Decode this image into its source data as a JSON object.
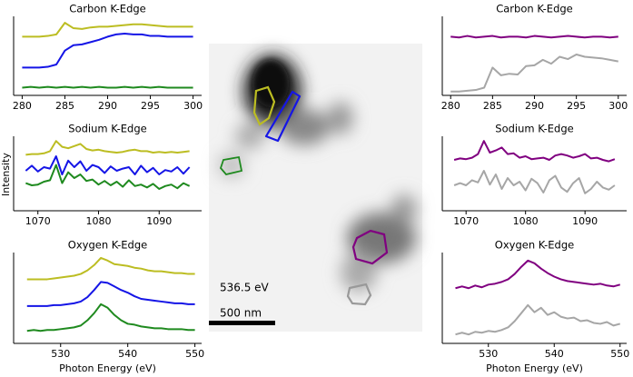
{
  "chart_data": [
    {
      "type": "line",
      "title": "Carbon K-Edge",
      "x": [
        280,
        281,
        282,
        283,
        284,
        285,
        286,
        287,
        288,
        289,
        290,
        291,
        292,
        293,
        294,
        295,
        296,
        297,
        298,
        299,
        300
      ],
      "xlim": [
        279,
        301
      ],
      "xticks": [
        280,
        285,
        290,
        295,
        300
      ],
      "ylim": [
        0,
        10
      ],
      "series": [
        {
          "color": "#bcbd22",
          "values": [
            7.6,
            7.6,
            7.6,
            7.7,
            7.9,
            9.4,
            8.7,
            8.6,
            8.8,
            8.9,
            8.9,
            9.0,
            9.1,
            9.2,
            9.2,
            9.1,
            9.0,
            8.9,
            8.9,
            8.9,
            8.9
          ]
        },
        {
          "color": "#1515e6",
          "values": [
            3.6,
            3.6,
            3.6,
            3.7,
            4.0,
            5.8,
            6.5,
            6.6,
            6.9,
            7.2,
            7.6,
            7.9,
            8.0,
            7.9,
            7.9,
            7.7,
            7.7,
            7.6,
            7.6,
            7.6,
            7.6
          ]
        },
        {
          "color": "#1f8a1f",
          "values": [
            1.0,
            1.1,
            1.0,
            1.1,
            1.0,
            1.1,
            1.0,
            1.1,
            1.0,
            1.1,
            1.0,
            1.0,
            1.1,
            1.0,
            1.1,
            1.0,
            1.1,
            1.0,
            1.0,
            1.0,
            1.0
          ]
        }
      ]
    },
    {
      "type": "line",
      "title": "Sodium K-Edge",
      "ylabel": "Intensity",
      "x": [
        1068,
        1069,
        1070,
        1071,
        1072,
        1073,
        1074,
        1075,
        1076,
        1077,
        1078,
        1079,
        1080,
        1081,
        1082,
        1083,
        1084,
        1085,
        1086,
        1087,
        1088,
        1089,
        1090,
        1091,
        1092,
        1093,
        1094,
        1095
      ],
      "xlim": [
        1066,
        1097
      ],
      "xticks": [
        1070,
        1080,
        1090
      ],
      "ylim": [
        0,
        10
      ],
      "series": [
        {
          "color": "#bcbd22",
          "values": [
            7.7,
            7.8,
            7.8,
            7.9,
            8.2,
            9.6,
            8.8,
            8.6,
            8.9,
            9.2,
            8.5,
            8.3,
            8.4,
            8.2,
            8.1,
            8.0,
            8.1,
            8.3,
            8.4,
            8.2,
            8.2,
            8.0,
            8.1,
            8.0,
            8.1,
            8.0,
            8.1,
            8.2
          ]
        },
        {
          "color": "#1515e6",
          "values": [
            5.5,
            6.2,
            5.4,
            6.0,
            5.8,
            7.5,
            5.0,
            6.9,
            6.0,
            6.8,
            5.5,
            6.3,
            6.0,
            5.2,
            6.1,
            5.5,
            5.8,
            6.0,
            5.0,
            6.2,
            5.3,
            5.9,
            5.0,
            5.6,
            5.4,
            6.0,
            5.1,
            6.0
          ]
        },
        {
          "color": "#1f8a1f",
          "values": [
            3.8,
            3.5,
            3.6,
            4.0,
            4.2,
            6.3,
            3.8,
            5.3,
            4.5,
            5.0,
            4.1,
            4.3,
            3.6,
            4.1,
            3.5,
            4.0,
            3.3,
            4.2,
            3.4,
            3.6,
            3.2,
            3.7,
            3.0,
            3.4,
            3.6,
            3.1,
            3.8,
            3.4
          ]
        }
      ]
    },
    {
      "type": "line",
      "title": "Oxygen K-Edge",
      "xlabel": "Photon Energy (eV)",
      "x": [
        525,
        526,
        527,
        528,
        529,
        530,
        531,
        532,
        533,
        534,
        535,
        536,
        537,
        538,
        539,
        540,
        541,
        542,
        543,
        544,
        545,
        546,
        547,
        548,
        549,
        550
      ],
      "xlim": [
        523,
        551
      ],
      "xticks": [
        530,
        540,
        550
      ],
      "ylim": [
        0,
        10
      ],
      "series": [
        {
          "color": "#bcbd22",
          "values": [
            7.2,
            7.2,
            7.2,
            7.2,
            7.3,
            7.4,
            7.5,
            7.6,
            7.8,
            8.2,
            8.8,
            9.6,
            9.3,
            8.9,
            8.8,
            8.7,
            8.5,
            8.4,
            8.2,
            8.1,
            8.1,
            8.0,
            7.9,
            7.9,
            7.8,
            7.8
          ]
        },
        {
          "color": "#1515e6",
          "values": [
            4.2,
            4.2,
            4.2,
            4.2,
            4.3,
            4.3,
            4.4,
            4.5,
            4.7,
            5.2,
            6.0,
            6.9,
            6.8,
            6.4,
            6.0,
            5.7,
            5.3,
            5.0,
            4.9,
            4.8,
            4.7,
            4.6,
            4.5,
            4.5,
            4.4,
            4.4
          ]
        },
        {
          "color": "#1f8a1f",
          "values": [
            1.4,
            1.5,
            1.4,
            1.5,
            1.5,
            1.6,
            1.7,
            1.8,
            2.0,
            2.6,
            3.4,
            4.4,
            4.0,
            3.2,
            2.6,
            2.2,
            2.1,
            1.9,
            1.8,
            1.7,
            1.7,
            1.6,
            1.6,
            1.6,
            1.5,
            1.5
          ]
        }
      ]
    },
    {
      "type": "line",
      "title": "Carbon K-Edge",
      "x": [
        280,
        281,
        282,
        283,
        284,
        285,
        286,
        287,
        288,
        289,
        290,
        291,
        292,
        293,
        294,
        295,
        296,
        297,
        298,
        299,
        300
      ],
      "xlim": [
        279,
        301
      ],
      "xticks": [
        280,
        285,
        290,
        295,
        300
      ],
      "ylim": [
        0,
        10
      ],
      "series": [
        {
          "color": "#800080",
          "values": [
            7.6,
            7.5,
            7.7,
            7.5,
            7.6,
            7.7,
            7.5,
            7.6,
            7.6,
            7.5,
            7.7,
            7.6,
            7.5,
            7.6,
            7.7,
            7.6,
            7.5,
            7.6,
            7.6,
            7.5,
            7.6
          ]
        },
        {
          "color": "#a6a6a6",
          "values": [
            0.5,
            0.5,
            0.6,
            0.7,
            1.0,
            3.6,
            2.6,
            2.8,
            2.7,
            3.8,
            3.9,
            4.6,
            4.1,
            5.0,
            4.7,
            5.3,
            5.0,
            4.9,
            4.8,
            4.6,
            4.4
          ]
        }
      ]
    },
    {
      "type": "line",
      "title": "Sodium K-Edge",
      "x": [
        1068,
        1069,
        1070,
        1071,
        1072,
        1073,
        1074,
        1075,
        1076,
        1077,
        1078,
        1079,
        1080,
        1081,
        1082,
        1083,
        1084,
        1085,
        1086,
        1087,
        1088,
        1089,
        1090,
        1091,
        1092,
        1093,
        1094,
        1095
      ],
      "xlim": [
        1066,
        1097
      ],
      "xticks": [
        1070,
        1080,
        1090
      ],
      "ylim": [
        0,
        10
      ],
      "series": [
        {
          "color": "#800080",
          "values": [
            7.0,
            7.2,
            7.1,
            7.3,
            7.8,
            9.6,
            8.0,
            8.3,
            8.7,
            7.8,
            7.9,
            7.3,
            7.5,
            7.1,
            7.2,
            7.3,
            7.0,
            7.6,
            7.8,
            7.6,
            7.3,
            7.5,
            7.8,
            7.2,
            7.3,
            7.0,
            6.8,
            7.1
          ]
        },
        {
          "color": "#a6a6a6",
          "values": [
            3.5,
            3.8,
            3.5,
            4.2,
            3.9,
            5.5,
            3.6,
            5.0,
            3.0,
            4.5,
            3.5,
            4.0,
            2.8,
            4.4,
            3.8,
            2.5,
            4.2,
            4.8,
            3.2,
            2.6,
            3.8,
            4.5,
            2.4,
            3.0,
            4.0,
            3.2,
            2.9,
            3.5
          ]
        }
      ]
    },
    {
      "type": "line",
      "title": "Oxygen K-Edge",
      "xlabel": "Photon Energy (eV)",
      "x": [
        525,
        526,
        527,
        528,
        529,
        530,
        531,
        532,
        533,
        534,
        535,
        536,
        537,
        538,
        539,
        540,
        541,
        542,
        543,
        544,
        545,
        546,
        547,
        548,
        549,
        550
      ],
      "xlim": [
        523,
        551
      ],
      "xticks": [
        530,
        540,
        550
      ],
      "ylim": [
        0,
        10
      ],
      "series": [
        {
          "color": "#800080",
          "values": [
            6.2,
            6.4,
            6.2,
            6.5,
            6.3,
            6.6,
            6.7,
            6.9,
            7.2,
            7.8,
            8.6,
            9.3,
            9.0,
            8.4,
            7.9,
            7.5,
            7.2,
            7.0,
            6.9,
            6.8,
            6.7,
            6.6,
            6.7,
            6.5,
            6.4,
            6.6
          ]
        },
        {
          "color": "#a6a6a6",
          "values": [
            1.0,
            1.2,
            1.0,
            1.3,
            1.2,
            1.4,
            1.3,
            1.5,
            1.8,
            2.5,
            3.4,
            4.3,
            3.5,
            4.0,
            3.2,
            3.5,
            3.0,
            2.8,
            2.9,
            2.5,
            2.6,
            2.3,
            2.2,
            2.4,
            2.0,
            2.2
          ]
        }
      ]
    }
  ],
  "image": {
    "energy_label": "536.5 eV",
    "scale_bar_label": "500 nm"
  }
}
